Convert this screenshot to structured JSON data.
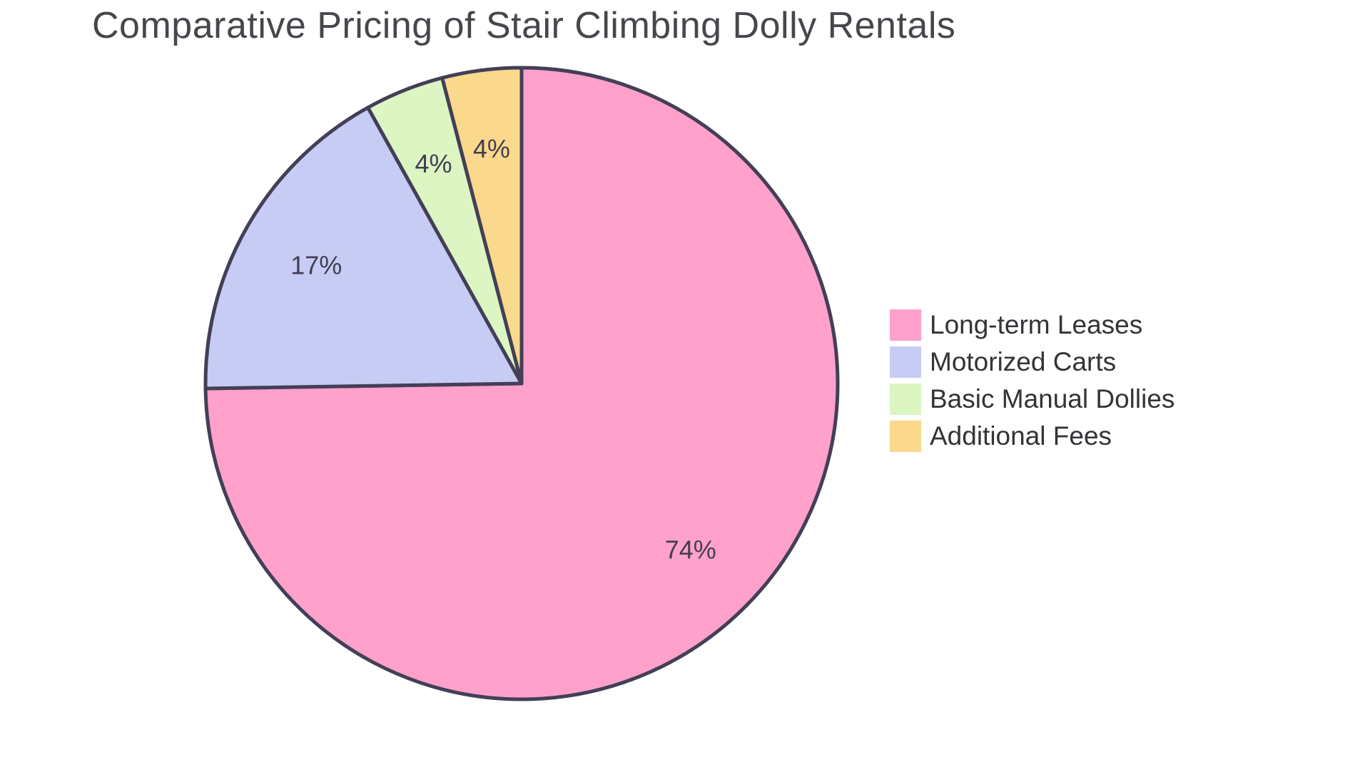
{
  "chart_data": {
    "type": "pie",
    "title": "Comparative Pricing of Stair Climbing Dolly Rentals",
    "slices": [
      {
        "label": "Long-term Leases",
        "value": 74,
        "display": "74%",
        "color": "#FFA1CB"
      },
      {
        "label": "Motorized Carts",
        "value": 17,
        "display": "17%",
        "color": "#C7CCF4"
      },
      {
        "label": "Basic Manual Dollies",
        "value": 4,
        "display": "4%",
        "color": "#DCF5C3"
      },
      {
        "label": "Additional Fees",
        "value": 4,
        "display": "4%",
        "color": "#FAD88C"
      }
    ],
    "start_angle_deg": 0,
    "direction": "clockwise",
    "legend_position": "right",
    "stroke_color": "#433F57",
    "label_color": "#423D52",
    "title_color": "#46474C"
  }
}
